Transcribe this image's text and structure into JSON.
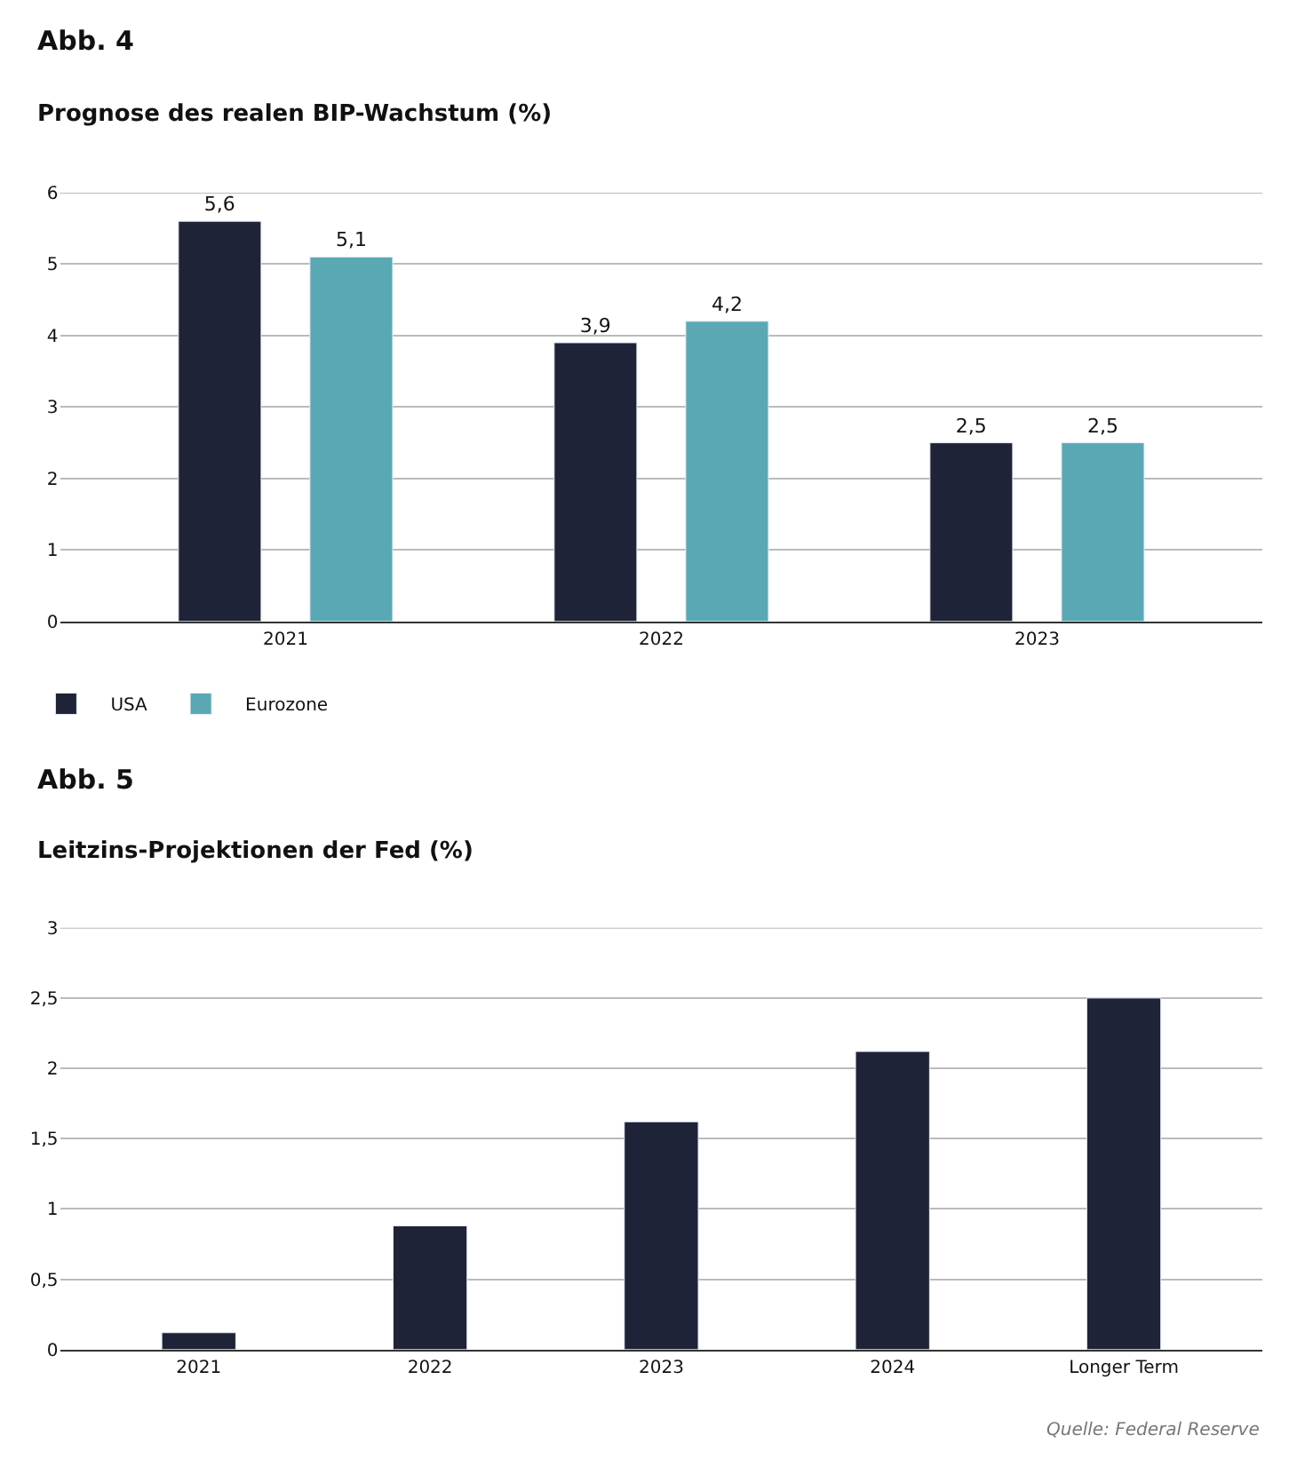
{
  "chart_data": [
    {
      "type": "bar",
      "title": "Abb. 4",
      "subtitle": "Prognose des realen BIP-Wachstum (%)",
      "categories": [
        "2021",
        "2022",
        "2023"
      ],
      "series": [
        {
          "name": "USA",
          "color": "#1f2338",
          "values": [
            5.6,
            3.9,
            2.5
          ],
          "value_labels": [
            "5,6",
            "3,9",
            "2,5"
          ]
        },
        {
          "name": "Eurozone",
          "color": "#5aa8b4",
          "values": [
            5.1,
            4.2,
            2.5
          ],
          "value_labels": [
            "5,1",
            "4,2",
            "2,5"
          ]
        }
      ],
      "ylim": [
        0,
        6
      ],
      "yticks": [
        0,
        1,
        2,
        3,
        4,
        5,
        6
      ],
      "grid": "y",
      "legend": "bottom left"
    },
    {
      "type": "bar",
      "title": "Abb. 5",
      "subtitle": "Leitzins-Projektionen der Fed (%)",
      "categories": [
        "2021",
        "2022",
        "2023",
        "2024",
        "Longer Term"
      ],
      "series": [
        {
          "color": "#1f2338",
          "values": [
            0.12,
            0.88,
            1.62,
            2.12,
            2.5
          ]
        }
      ],
      "ylim": [
        0,
        3
      ],
      "yticks": [
        0,
        {
          "value": 0.5,
          "label": "0,5"
        },
        1,
        {
          "value": 1.5,
          "label": "1,5"
        },
        2,
        {
          "value": 2.5,
          "label": "2,5"
        },
        3
      ],
      "grid": "y",
      "legend": false,
      "annotations": [
        "Quelle: Federal Reserve"
      ]
    }
  ]
}
